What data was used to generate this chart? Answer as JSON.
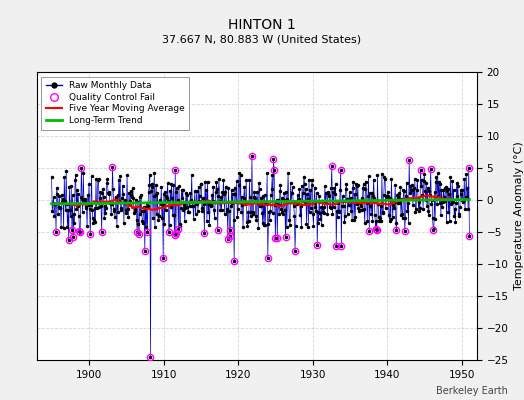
{
  "title": "HINTON 1",
  "subtitle": "37.667 N, 80.883 W (United States)",
  "ylabel": "Temperature Anomaly (°C)",
  "watermark": "Berkeley Earth",
  "xlim": [
    1893,
    1952
  ],
  "ylim": [
    -25,
    20
  ],
  "yticks": [
    -25,
    -20,
    -15,
    -10,
    -5,
    0,
    5,
    10,
    15,
    20
  ],
  "xticks": [
    1900,
    1910,
    1920,
    1930,
    1940,
    1950
  ],
  "bg_color": "#f0f0f0",
  "plot_bg_color": "#ffffff",
  "seed": 7,
  "x_start": 1895,
  "x_end": 1951,
  "n_months": 660,
  "trend_slope": 0.012,
  "trend_intercept": -0.3,
  "moving_avg_window": 60,
  "outlier_year": 1908.3,
  "outlier_value": -24.5,
  "outlier2_year": 1907.5,
  "outlier2_value": -8.0,
  "raw_line_color": "#0000cc",
  "raw_dot_color": "#000000",
  "qc_color": "#ff00ff",
  "moving_avg_color": "#ff0000",
  "trend_color": "#00bb00",
  "grid_color": "#bbbbbb",
  "grid_style": "--",
  "grid_alpha": 0.6,
  "noise_std": 2.5,
  "qc_threshold": 4.5,
  "n_extra_qc": 8
}
